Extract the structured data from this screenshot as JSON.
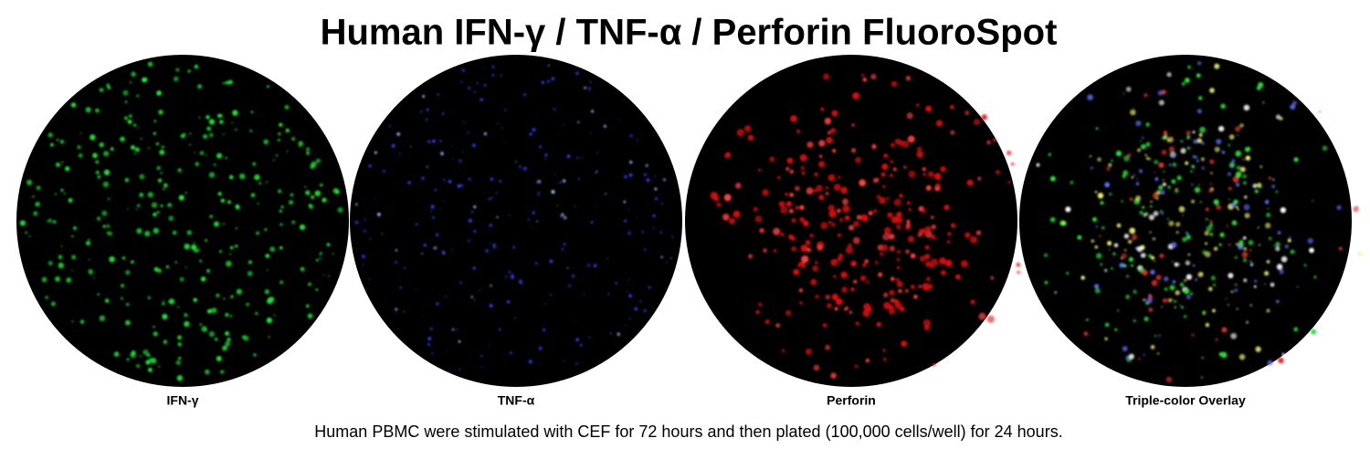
{
  "title": "Human IFN-γ / TNF-α / Perforin FluoroSpot",
  "panels": [
    {
      "label": "IFN-γ"
    },
    {
      "label": "TNF-α"
    },
    {
      "label": "Perforin"
    },
    {
      "label": "Triple-color Overlay"
    }
  ],
  "caption": "Human PBMC were stimulated with CEF for 72 hours and then plated (100,000 cells/well) for 24 hours."
}
